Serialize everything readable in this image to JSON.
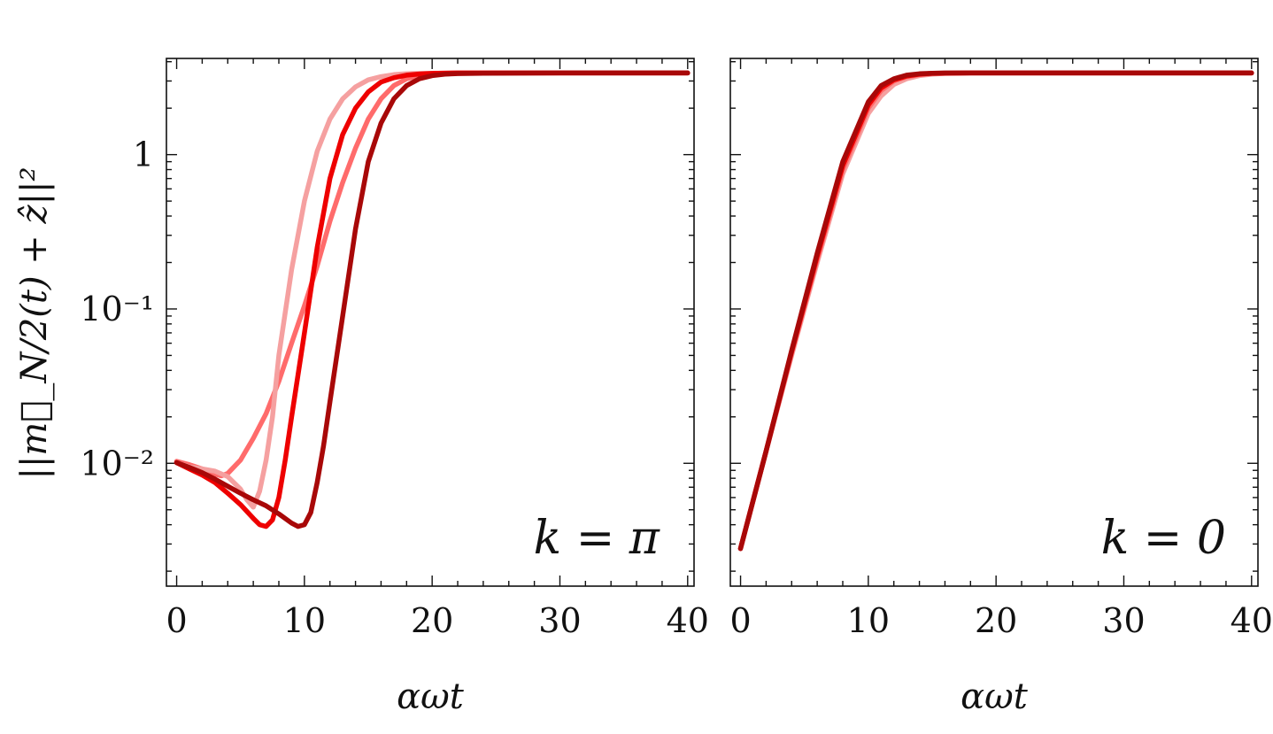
{
  "chart_data": [
    {
      "type": "line",
      "ylabel": "||m⃗_N/2(t) + ẑ||²",
      "xlabel": "αωt",
      "annotation": "k = π",
      "xlim": [
        -0.8,
        40.5
      ],
      "ylim": [
        0.0016,
        4.2
      ],
      "yscale": "log",
      "xticks": [
        "0",
        "10",
        "20",
        "30",
        "40"
      ],
      "xtick_values": [
        0,
        10,
        20,
        30,
        40
      ],
      "yticks": [
        "1",
        "10⁻¹",
        "10⁻²"
      ],
      "ytick_values": [
        1,
        0.1,
        0.01
      ],
      "series": [
        {
          "color": "#ff6b6b",
          "x": [
            0,
            1,
            2,
            3,
            3.5,
            4,
            5,
            6,
            7,
            8,
            9,
            10,
            11,
            12,
            13,
            14,
            15,
            16,
            17,
            18,
            19,
            20,
            21,
            22,
            24,
            30,
            40
          ],
          "y": [
            0.0103,
            0.0098,
            0.0092,
            0.0085,
            0.0083,
            0.0086,
            0.0105,
            0.0145,
            0.021,
            0.034,
            0.06,
            0.105,
            0.19,
            0.37,
            0.66,
            1.1,
            1.7,
            2.3,
            2.8,
            3.1,
            3.25,
            3.32,
            3.35,
            3.37,
            3.38,
            3.38,
            3.38
          ]
        },
        {
          "color": "#f5a0a0",
          "x": [
            0,
            1,
            2,
            3,
            4,
            5,
            5.5,
            6,
            6.5,
            7,
            7.5,
            8,
            9,
            10,
            11,
            12,
            13,
            14,
            15,
            16,
            17,
            18,
            19,
            20,
            22,
            30,
            40
          ],
          "y": [
            0.0101,
            0.0095,
            0.0092,
            0.0089,
            0.0082,
            0.0068,
            0.0058,
            0.0052,
            0.0066,
            0.0105,
            0.02,
            0.05,
            0.18,
            0.5,
            1.05,
            1.7,
            2.3,
            2.75,
            3.05,
            3.2,
            3.3,
            3.34,
            3.36,
            3.37,
            3.38,
            3.38,
            3.38
          ]
        },
        {
          "color": "#ee0000",
          "x": [
            0,
            1,
            2,
            3,
            4,
            5,
            6,
            6.5,
            7,
            7.5,
            8,
            8.5,
            9,
            10,
            11,
            12,
            13,
            14,
            15,
            16,
            17,
            18,
            19,
            20,
            22,
            30,
            40
          ],
          "y": [
            0.0101,
            0.0092,
            0.0084,
            0.0075,
            0.0064,
            0.0054,
            0.0044,
            0.004,
            0.0039,
            0.0043,
            0.006,
            0.0105,
            0.02,
            0.07,
            0.25,
            0.7,
            1.35,
            2.0,
            2.55,
            2.95,
            3.15,
            3.27,
            3.33,
            3.36,
            3.38,
            3.38,
            3.38
          ]
        },
        {
          "color": "#a80808",
          "x": [
            0,
            1,
            2,
            3,
            4,
            5,
            6,
            7,
            8,
            9,
            9.5,
            10,
            10.5,
            11,
            11.5,
            12,
            13,
            14,
            15,
            16,
            17,
            18,
            19,
            20,
            21,
            22,
            24,
            30,
            40
          ],
          "y": [
            0.0101,
            0.0094,
            0.0087,
            0.0079,
            0.0071,
            0.0064,
            0.0058,
            0.0053,
            0.0047,
            0.0041,
            0.0039,
            0.004,
            0.0048,
            0.0075,
            0.013,
            0.025,
            0.09,
            0.33,
            0.9,
            1.6,
            2.3,
            2.8,
            3.1,
            3.25,
            3.32,
            3.35,
            3.37,
            3.38,
            3.38
          ]
        }
      ]
    },
    {
      "type": "line",
      "ylabel": "",
      "xlabel": "αωt",
      "annotation": "k = 0",
      "xlim": [
        -0.8,
        40.5
      ],
      "ylim": [
        0.0016,
        4.2
      ],
      "yscale": "log",
      "xticks": [
        "0",
        "10",
        "20",
        "30",
        "40"
      ],
      "xtick_values": [
        0,
        10,
        20,
        30,
        40
      ],
      "yticks": [],
      "series": [
        {
          "color": "#f5a0a0",
          "x": [
            0,
            2,
            4,
            6,
            8,
            10,
            11,
            12,
            13,
            14,
            15,
            16,
            18,
            20,
            30,
            40
          ],
          "y": [
            0.0028,
            0.012,
            0.05,
            0.2,
            0.75,
            1.85,
            2.4,
            2.85,
            3.1,
            3.25,
            3.32,
            3.36,
            3.38,
            3.38,
            3.38,
            3.38
          ]
        },
        {
          "color": "#ff6b6b",
          "x": [
            0,
            2,
            4,
            6,
            8,
            10,
            11,
            12,
            13,
            14,
            15,
            16,
            18,
            20,
            30,
            40
          ],
          "y": [
            0.0028,
            0.012,
            0.052,
            0.21,
            0.8,
            2.0,
            2.6,
            3.0,
            3.2,
            3.3,
            3.35,
            3.37,
            3.38,
            3.38,
            3.38,
            3.38
          ]
        },
        {
          "color": "#ee0000",
          "x": [
            0,
            2,
            4,
            6,
            8,
            10,
            11,
            12,
            13,
            14,
            15,
            16,
            18,
            20,
            30,
            40
          ],
          "y": [
            0.0028,
            0.012,
            0.053,
            0.22,
            0.85,
            2.1,
            2.7,
            3.05,
            3.23,
            3.32,
            3.36,
            3.37,
            3.38,
            3.38,
            3.38,
            3.38
          ]
        },
        {
          "color": "#a80808",
          "x": [
            0,
            2,
            4,
            6,
            8,
            10,
            11,
            12,
            13,
            14,
            15,
            16,
            18,
            20,
            30,
            40
          ],
          "y": [
            0.0028,
            0.012,
            0.054,
            0.23,
            0.9,
            2.2,
            2.8,
            3.1,
            3.27,
            3.34,
            3.37,
            3.38,
            3.38,
            3.38,
            3.38,
            3.38
          ]
        }
      ]
    }
  ]
}
